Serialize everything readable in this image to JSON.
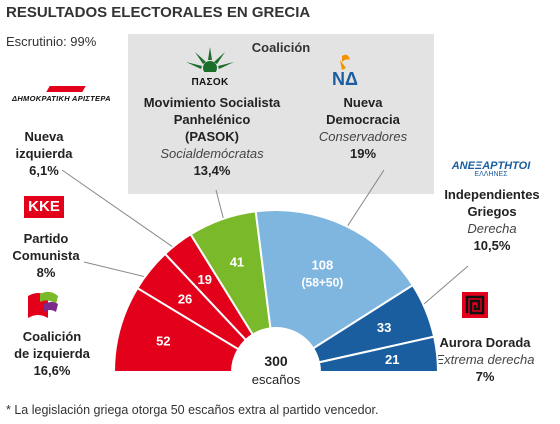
{
  "header": {
    "title": "RESULTADOS ELECTORALES EN GRECIA",
    "scrutiny": "Escrutinio: 99%",
    "coalition_title": "Coalición",
    "footnote": "* La legislación griega otorga 50 escaños extra al partido vencedor."
  },
  "center": {
    "total": "300",
    "unit": "escaños"
  },
  "colors": {
    "left": "#e2001a",
    "pasok": "#7ab929",
    "nd": "#7fb6e0",
    "right": "#1a5e9f",
    "coalition_bg": "#e3e3e3"
  },
  "chart_data": {
    "type": "pie",
    "subtype": "semicircle-parliament",
    "total_seats": 300,
    "seats": [
      {
        "label_key": "coalicion_izquierda",
        "value": 52,
        "label": "52",
        "color": "#e2001a"
      },
      {
        "label_key": "partido_comunista",
        "value": 26,
        "label": "26",
        "color": "#e2001a"
      },
      {
        "label_key": "nueva_izquierda",
        "value": 19,
        "label": "19",
        "color": "#e2001a"
      },
      {
        "label_key": "pasok",
        "value": 41,
        "label": "41",
        "color": "#7ab929"
      },
      {
        "label_key": "nueva_democracia",
        "value": 108,
        "label": "108",
        "sublabel": "(58+50)",
        "color": "#7fb6e0"
      },
      {
        "label_key": "independientes_griegos",
        "value": 33,
        "label": "33",
        "color": "#1a5e9f"
      },
      {
        "label_key": "aurora_dorada",
        "value": 21,
        "label": "21",
        "color": "#1a5e9f"
      }
    ]
  },
  "parties": {
    "nueva_izquierda": {
      "logo": "ΔΗΜΟΚΡΑΤΙΚΗ ΑΡΙΣΤΕΡΑ",
      "name1": "Nueva",
      "name2": "izquierda",
      "pct": "6,1%"
    },
    "partido_comunista": {
      "logo": "ΚΚΕ",
      "name1": "Partido",
      "name2": "Comunista",
      "pct": "8%"
    },
    "coalicion_izquierda": {
      "name1": "Coalición",
      "name2": "de izquierda",
      "pct": "16,6%"
    },
    "pasok": {
      "logo": "ΠΑΣΟΚ",
      "name1": "Movimiento Socialista",
      "name2": "Panhelénico",
      "name3": "(PASOK)",
      "ideology": "Socialdemócratas",
      "pct": "13,4%"
    },
    "nueva_democracia": {
      "logo": "ΝΔ",
      "name1": "Nueva",
      "name2": "Democracia",
      "ideology": "Conservadores",
      "pct": "19%"
    },
    "independientes_griegos": {
      "logo": "ΑΝΕΞΑΡΤΗΤΟΙ",
      "logo_sub": "ΕΛΛΗΝΕΣ",
      "name1": "Independientes",
      "name2": "Griegos",
      "ideology": "Derecha",
      "pct": "10,5%"
    },
    "aurora_dorada": {
      "name1": "Aurora Dorada",
      "ideology": "Extrema derecha",
      "pct": "7%"
    }
  }
}
